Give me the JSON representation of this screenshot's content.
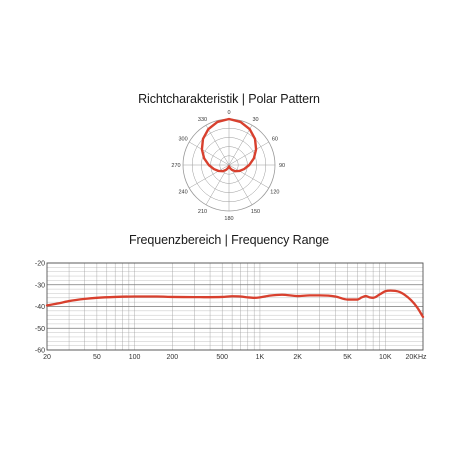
{
  "polar_title": "Richtcharakteristik  |  Polar Pattern",
  "frequency_title": "Frequenzbereich  |  Frequency Range",
  "colors": {
    "curve": "#d8402e",
    "grid": "#9a9a9a",
    "axis": "#555555"
  },
  "chart_data": [
    {
      "type": "polar",
      "title": "Richtcharakteristik  |  Polar Pattern",
      "angle_labels": [
        "0",
        "30",
        "60",
        "90",
        "120",
        "150",
        "180",
        "210",
        "240",
        "270",
        "300",
        "330"
      ],
      "rings": 5,
      "pattern": "supercardioid",
      "series": [
        {
          "angles": [
            0,
            15,
            30,
            45,
            60,
            75,
            90,
            105,
            120,
            135,
            150,
            165,
            180,
            195,
            210,
            225,
            240,
            255,
            270,
            285,
            300,
            315,
            330,
            345
          ],
          "values": [
            1.0,
            0.97,
            0.9,
            0.8,
            0.68,
            0.56,
            0.44,
            0.34,
            0.26,
            0.19,
            0.12,
            0.06,
            0.03,
            0.06,
            0.12,
            0.19,
            0.26,
            0.34,
            0.44,
            0.56,
            0.68,
            0.8,
            0.9,
            0.97
          ]
        }
      ]
    },
    {
      "type": "line",
      "title": "Frequenzbereich  |  Frequency Range",
      "xscale": "log",
      "xlim": [
        20,
        20000
      ],
      "ylim": [
        -60,
        -20
      ],
      "x_ticks": [
        20,
        50,
        100,
        200,
        500,
        1000,
        2000,
        5000,
        10000,
        20000
      ],
      "x_tick_labels": [
        "20",
        "50",
        "100",
        "200",
        "500",
        "1K",
        "2K",
        "5K",
        "10K",
        "20KHz"
      ],
      "y_ticks": [
        -20,
        -30,
        -40,
        -50,
        -60
      ],
      "y_tick_labels": [
        "-20",
        "-30",
        "-40",
        "-50",
        "-60"
      ],
      "grid": true,
      "series": [
        {
          "x": [
            20,
            25,
            30,
            40,
            50,
            70,
            100,
            150,
            200,
            300,
            500,
            600,
            700,
            800,
            900,
            1000,
            1200,
            1500,
            2000,
            2500,
            3000,
            4000,
            5000,
            6000,
            6500,
            7000,
            7500,
            8000,
            9000,
            10000,
            11000,
            12000,
            13000,
            14000,
            16000,
            18000,
            20000
          ],
          "y": [
            -39.5,
            -38.5,
            -37.5,
            -36.5,
            -36.0,
            -35.6,
            -35.4,
            -35.4,
            -35.6,
            -35.7,
            -35.6,
            -35.3,
            -35.4,
            -35.8,
            -36.0,
            -35.8,
            -35.0,
            -34.6,
            -35.2,
            -34.9,
            -34.9,
            -35.4,
            -36.8,
            -36.8,
            -35.8,
            -35.2,
            -35.8,
            -36.0,
            -34.5,
            -33.0,
            -32.7,
            -32.8,
            -33.3,
            -34.3,
            -37.0,
            -40.5,
            -44.8
          ]
        }
      ]
    }
  ]
}
